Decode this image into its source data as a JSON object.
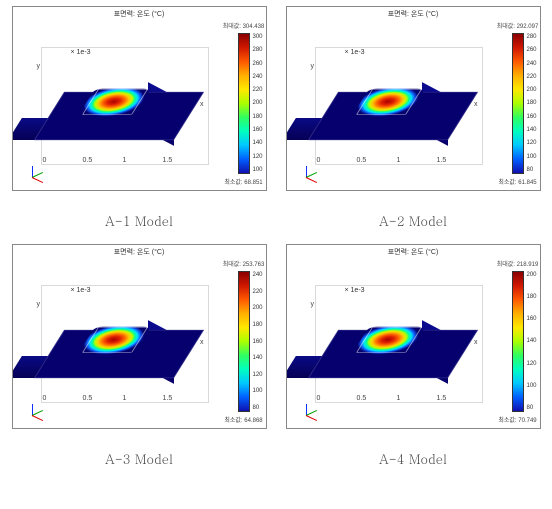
{
  "panels": [
    {
      "caption": "A-1 Model",
      "plot_title": "표면력: 온도 (°C)",
      "max_label": "최대값: 304.438",
      "min_label": "최소값: 68.851",
      "axis_unit": "× 1e-3",
      "x_ticks": [
        "0",
        "0.5",
        "1",
        "1.5"
      ],
      "axis_x": "x",
      "axis_y": "y",
      "colorbar_ticks": [
        "300",
        "280",
        "260",
        "240",
        "220",
        "200",
        "180",
        "160",
        "140",
        "120",
        "100"
      ],
      "colorbar_stops": [
        "#8a0000",
        "#d01800",
        "#ff5a00",
        "#ffb000",
        "#ffe800",
        "#aaff00",
        "#30ff60",
        "#00ffc0",
        "#00c8ff",
        "#0060ff",
        "#1010b0"
      ]
    },
    {
      "caption": "A-2 Model",
      "plot_title": "표면력: 온도 (°C)",
      "max_label": "최대값: 292.097",
      "min_label": "최소값: 61.845",
      "axis_unit": "× 1e-3",
      "x_ticks": [
        "0",
        "0.5",
        "1",
        "1.5"
      ],
      "axis_x": "x",
      "axis_y": "y",
      "colorbar_ticks": [
        "280",
        "260",
        "240",
        "220",
        "200",
        "180",
        "160",
        "140",
        "120",
        "100",
        "80"
      ],
      "colorbar_stops": [
        "#8a0000",
        "#d01800",
        "#ff5a00",
        "#ffb000",
        "#ffe800",
        "#aaff00",
        "#30ff60",
        "#00ffc0",
        "#00c8ff",
        "#0060ff",
        "#1010b0"
      ]
    },
    {
      "caption": "A-3 Model",
      "plot_title": "표면력: 온도 (°C)",
      "max_label": "최대값: 253.763",
      "min_label": "최소값: 64.868",
      "axis_unit": "× 1e-3",
      "x_ticks": [
        "0",
        "0.5",
        "1",
        "1.5"
      ],
      "axis_x": "x",
      "axis_y": "y",
      "colorbar_ticks": [
        "240",
        "220",
        "200",
        "180",
        "160",
        "140",
        "120",
        "100",
        "80"
      ],
      "colorbar_stops": [
        "#8a0000",
        "#d01800",
        "#ff5a00",
        "#ffb000",
        "#ffe800",
        "#aaff00",
        "#30ff60",
        "#00ffc0",
        "#00c8ff",
        "#0060ff",
        "#1010b0"
      ]
    },
    {
      "caption": "A-4 Model",
      "plot_title": "표면력: 온도 (°C)",
      "max_label": "최대값: 218.919",
      "min_label": "최소값: 70.749",
      "axis_unit": "× 1e-3",
      "x_ticks": [
        "0",
        "0.5",
        "1",
        "1.5"
      ],
      "axis_x": "x",
      "axis_y": "y",
      "colorbar_ticks": [
        "200",
        "180",
        "160",
        "140",
        "120",
        "100",
        "80"
      ],
      "colorbar_stops": [
        "#8a0000",
        "#d01800",
        "#ff5a00",
        "#ffb000",
        "#ffe800",
        "#aaff00",
        "#30ff60",
        "#00ffc0",
        "#00c8ff",
        "#0060ff",
        "#1010b0"
      ]
    }
  ],
  "layout": {
    "cols": 2,
    "rows": 2,
    "background": "#ffffff"
  }
}
